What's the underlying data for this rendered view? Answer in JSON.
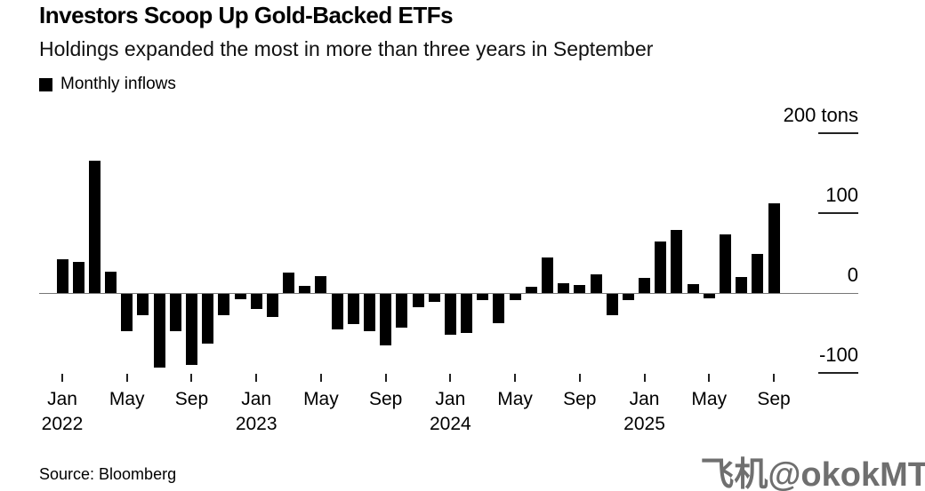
{
  "header": {
    "title": "Investors Scoop Up Gold-Backed ETFs",
    "subtitle": "Holdings expanded the most in more than three years in September"
  },
  "legend": {
    "label": "Monthly inflows",
    "swatch_color": "#000000"
  },
  "chart_data": {
    "type": "bar",
    "title": "Investors Scoop Up Gold-Backed ETFs",
    "series_name": "Monthly inflows",
    "unit": "tons",
    "ylim": [
      -130,
      235
    ],
    "grid": false,
    "legend_position": "top-left",
    "bar_color": "#000000",
    "months": [
      "Jan 2022",
      "Feb 2022",
      "Mar 2022",
      "Apr 2022",
      "May 2022",
      "Jun 2022",
      "Jul 2022",
      "Aug 2022",
      "Sep 2022",
      "Oct 2022",
      "Nov 2022",
      "Dec 2022",
      "Jan 2023",
      "Feb 2023",
      "Mar 2023",
      "Apr 2023",
      "May 2023",
      "Jun 2023",
      "Jul 2023",
      "Aug 2023",
      "Sep 2023",
      "Oct 2023",
      "Nov 2023",
      "Dec 2023",
      "Jan 2024",
      "Feb 2024",
      "Mar 2024",
      "Apr 2024",
      "May 2024",
      "Jun 2024",
      "Jul 2024",
      "Aug 2024",
      "Sep 2024",
      "Oct 2024",
      "Nov 2024",
      "Dec 2024",
      "Jan 2025",
      "Feb 2025",
      "Mar 2025",
      "Apr 2025",
      "May 2025",
      "Jun 2025",
      "Jul 2025",
      "Aug 2025",
      "Sep 2025"
    ],
    "values": [
      42,
      39,
      166,
      27,
      -47,
      -27,
      -92,
      -47,
      -89,
      -62,
      -27,
      -7,
      -19,
      -29,
      26,
      9,
      21,
      -44,
      -38,
      -47,
      -64,
      -42,
      -17,
      -10,
      -51,
      -49,
      -8,
      -37,
      -8,
      8,
      44,
      12,
      10,
      23,
      -27,
      -8,
      19,
      64,
      79,
      11,
      -5,
      73,
      20,
      49,
      112
    ],
    "y_ticks": [
      {
        "value": 200,
        "label": "200 tons",
        "line": true
      },
      {
        "value": 100,
        "label": "100",
        "line": true
      },
      {
        "value": 0,
        "label": "0",
        "line": false
      },
      {
        "value": -100,
        "label": "-100",
        "line": true
      }
    ],
    "x_ticks": [
      {
        "index": 0,
        "month": "Jan",
        "year": "2022"
      },
      {
        "index": 4,
        "month": "May"
      },
      {
        "index": 8,
        "month": "Sep"
      },
      {
        "index": 12,
        "month": "Jan",
        "year": "2023"
      },
      {
        "index": 16,
        "month": "May"
      },
      {
        "index": 20,
        "month": "Sep"
      },
      {
        "index": 24,
        "month": "Jan",
        "year": "2024"
      },
      {
        "index": 28,
        "month": "May"
      },
      {
        "index": 32,
        "month": "Sep"
      },
      {
        "index": 36,
        "month": "Jan",
        "year": "2025"
      },
      {
        "index": 40,
        "month": "May"
      },
      {
        "index": 44,
        "month": "Sep"
      }
    ]
  },
  "footer": {
    "source": "Source: Bloomberg",
    "watermark": "飞机@okokMT"
  }
}
